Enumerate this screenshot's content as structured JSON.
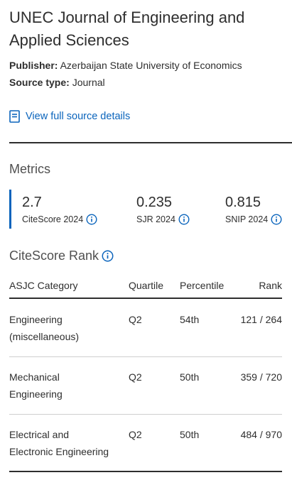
{
  "source": {
    "title": "UNEC Journal of Engineering and Applied Sciences",
    "publisher_label": "Publisher:",
    "publisher": "Azerbaijan State University of Economics",
    "source_type_label": "Source type:",
    "source_type": "Journal",
    "view_details_link": "View full source details"
  },
  "metrics": {
    "heading": "Metrics",
    "items": [
      {
        "value": "2.7",
        "label": "CiteScore 2024"
      },
      {
        "value": "0.235",
        "label": "SJR 2024"
      },
      {
        "value": "0.815",
        "label": "SNIP 2024"
      }
    ]
  },
  "citescore_rank": {
    "heading": "CiteScore Rank",
    "columns": [
      "ASJC Category",
      "Quartile",
      "Percentile",
      "Rank"
    ],
    "rows": [
      {
        "category": [
          "Engineering",
          "(miscellaneous)"
        ],
        "quartile": "Q2",
        "percentile": "54th",
        "rank": "121 / 264"
      },
      {
        "category": [
          "Mechanical",
          "Engineering"
        ],
        "quartile": "Q2",
        "percentile": "50th",
        "rank": "359 / 720"
      },
      {
        "category": [
          "Electrical and",
          "Electronic Engineering"
        ],
        "quartile": "Q2",
        "percentile": "50th",
        "rank": "484 / 970"
      }
    ]
  },
  "colors": {
    "accent": "#0a64bc",
    "text": "#2e2e2e"
  }
}
